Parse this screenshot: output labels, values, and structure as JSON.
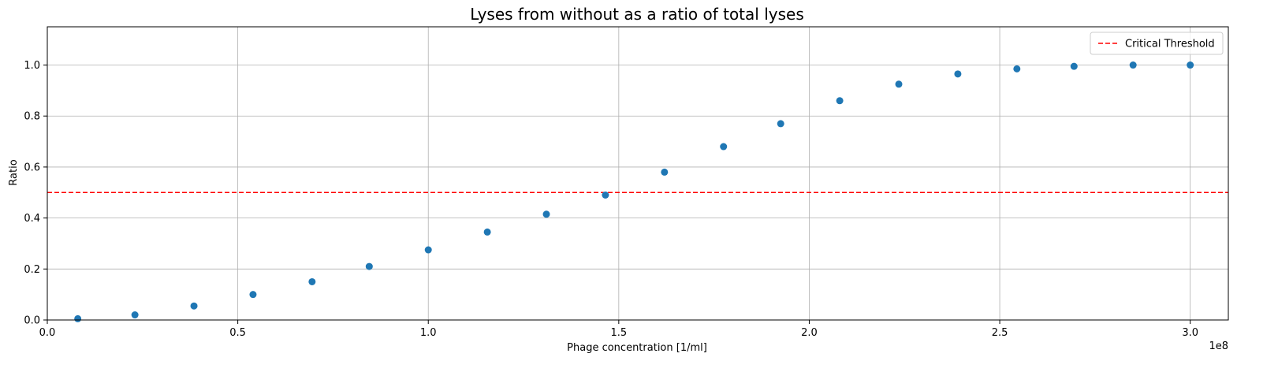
{
  "chart_data": {
    "type": "scatter",
    "title": "Lyses from without as a ratio of total lyses",
    "xlabel": "Phage concentration [1/ml]",
    "ylabel": "Ratio",
    "x_offset_label": "1e8",
    "xlim": [
      0,
      3.1
    ],
    "ylim": [
      0,
      1.15
    ],
    "grid": true,
    "legend_position": "top-right",
    "x_ticks": [
      0.0,
      0.5,
      1.0,
      1.5,
      2.0,
      2.5,
      3.0
    ],
    "x_tick_labels": [
      "0.0",
      "0.5",
      "1.0",
      "1.5",
      "2.0",
      "2.5",
      "3.0"
    ],
    "y_ticks": [
      0.0,
      0.2,
      0.4,
      0.6,
      0.8,
      1.0
    ],
    "y_tick_labels": [
      "0.0",
      "0.2",
      "0.4",
      "0.6",
      "0.8",
      "1.0"
    ],
    "series": [
      {
        "color": "#1f77b4",
        "marker": "circle",
        "x": [
          0.08,
          0.23,
          0.385,
          0.54,
          0.695,
          0.845,
          1.0,
          1.155,
          1.31,
          1.465,
          1.62,
          1.775,
          1.925,
          2.08,
          2.235,
          2.39,
          2.545,
          2.695,
          2.85,
          3.0
        ],
        "y": [
          0.005,
          0.02,
          0.055,
          0.1,
          0.15,
          0.21,
          0.275,
          0.345,
          0.415,
          0.49,
          0.58,
          0.68,
          0.77,
          0.86,
          0.925,
          0.965,
          0.985,
          0.995,
          1.0,
          1.0
        ]
      }
    ],
    "reference_lines": [
      {
        "name": "Critical Threshold",
        "orientation": "horizontal",
        "y": 0.5,
        "color": "#ff0000",
        "style": "dashed"
      }
    ]
  }
}
